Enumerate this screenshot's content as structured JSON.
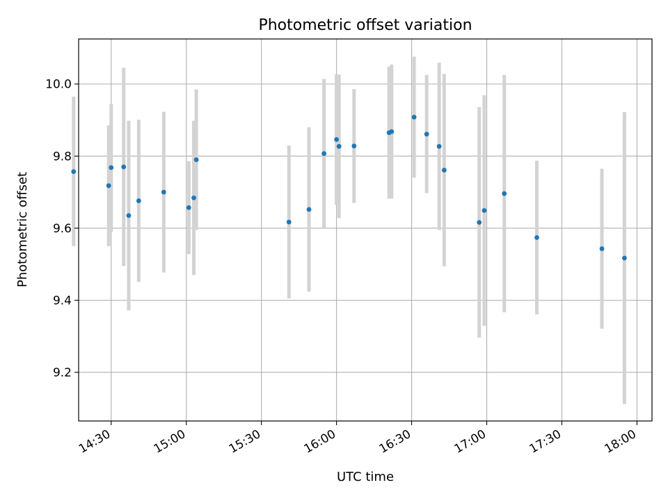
{
  "chart_data": {
    "type": "scatter",
    "title": "Photometric offset variation",
    "xlabel": "UTC time",
    "ylabel": "Photometric offset",
    "x_tick_labels": [
      "14:30",
      "15:00",
      "15:30",
      "16:00",
      "16:30",
      "17:00",
      "17:30",
      "18:00"
    ],
    "y_tick_labels": [
      "9.2",
      "9.4",
      "9.6",
      "9.8",
      "10.0"
    ],
    "xlim": [
      "14:17",
      "18:06"
    ],
    "ylim": [
      9.065,
      10.125
    ],
    "grid": true,
    "legend": "none",
    "colors": {
      "points": "#1f77b4",
      "error_bars": "#d3d3d3",
      "grid": "#b0b0b0"
    },
    "points": [
      {
        "time": "14:15",
        "y": 9.757,
        "y_low": 9.55,
        "y_high": 9.965
      },
      {
        "time": "14:29",
        "y": 9.718,
        "y_low": 9.55,
        "y_high": 9.885
      },
      {
        "time": "14:30",
        "y": 9.768,
        "y_low": 9.59,
        "y_high": 9.945
      },
      {
        "time": "14:35",
        "y": 9.77,
        "y_low": 9.495,
        "y_high": 10.045
      },
      {
        "time": "14:37",
        "y": 9.635,
        "y_low": 9.372,
        "y_high": 9.898
      },
      {
        "time": "14:41",
        "y": 9.676,
        "y_low": 9.451,
        "y_high": 9.901
      },
      {
        "time": "14:51",
        "y": 9.7,
        "y_low": 9.477,
        "y_high": 9.923
      },
      {
        "time": "15:01",
        "y": 9.657,
        "y_low": 9.528,
        "y_high": 9.786
      },
      {
        "time": "15:03",
        "y": 9.684,
        "y_low": 9.47,
        "y_high": 9.898
      },
      {
        "time": "15:04",
        "y": 9.79,
        "y_low": 9.595,
        "y_high": 9.985
      },
      {
        "time": "15:41",
        "y": 9.617,
        "y_low": 9.405,
        "y_high": 9.829
      },
      {
        "time": "15:49",
        "y": 9.652,
        "y_low": 9.424,
        "y_high": 9.88
      },
      {
        "time": "15:55",
        "y": 9.807,
        "y_low": 9.6,
        "y_high": 10.014
      },
      {
        "time": "16:00",
        "y": 9.846,
        "y_low": 9.665,
        "y_high": 10.027
      },
      {
        "time": "16:01",
        "y": 9.827,
        "y_low": 9.628,
        "y_high": 10.026
      },
      {
        "time": "16:07",
        "y": 9.828,
        "y_low": 9.67,
        "y_high": 9.986
      },
      {
        "time": "16:21",
        "y": 9.865,
        "y_low": 9.682,
        "y_high": 10.048
      },
      {
        "time": "16:22",
        "y": 9.868,
        "y_low": 9.682,
        "y_high": 10.054
      },
      {
        "time": "16:31",
        "y": 9.908,
        "y_low": 9.74,
        "y_high": 10.076
      },
      {
        "time": "16:36",
        "y": 9.861,
        "y_low": 9.697,
        "y_high": 10.025
      },
      {
        "time": "16:41",
        "y": 9.827,
        "y_low": 9.595,
        "y_high": 10.059
      },
      {
        "time": "16:43",
        "y": 9.761,
        "y_low": 9.494,
        "y_high": 10.028
      },
      {
        "time": "16:57",
        "y": 9.616,
        "y_low": 9.296,
        "y_high": 9.936
      },
      {
        "time": "16:59",
        "y": 9.649,
        "y_low": 9.329,
        "y_high": 9.969
      },
      {
        "time": "17:07",
        "y": 9.696,
        "y_low": 9.367,
        "y_high": 10.025
      },
      {
        "time": "17:20",
        "y": 9.574,
        "y_low": 9.361,
        "y_high": 9.787
      },
      {
        "time": "17:46",
        "y": 9.543,
        "y_low": 9.321,
        "y_high": 9.765
      },
      {
        "time": "17:55",
        "y": 9.517,
        "y_low": 9.112,
        "y_high": 9.922
      }
    ]
  }
}
